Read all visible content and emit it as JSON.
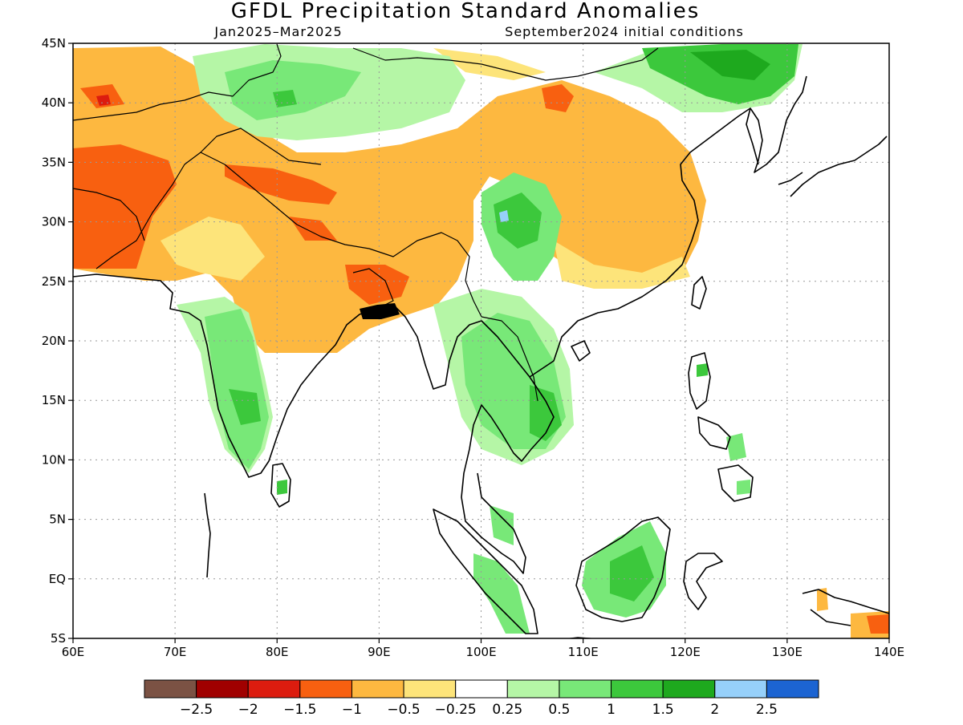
{
  "map": {
    "title": "GFDL Precipitation Standard Anomalies",
    "period": "Jan2025–Mar2025",
    "init": "September2024 initial conditions",
    "lon_range": [
      60,
      140
    ],
    "lat_range": [
      -5,
      45
    ],
    "lon_labels": [
      "60E",
      "70E",
      "80E",
      "90E",
      "100E",
      "110E",
      "120E",
      "130E",
      "140E"
    ],
    "lat_labels": [
      "45N",
      "40N",
      "35N",
      "30N",
      "25N",
      "20N",
      "15N",
      "10N",
      "5N",
      "EQ",
      "5S"
    ]
  },
  "colorbar": {
    "colors": [
      "#7b5244",
      "#a00000",
      "#dc1c0f",
      "#f86010",
      "#fdb840",
      "#fde47a",
      "#ffffff",
      "#b5f6a6",
      "#78e878",
      "#3cc83c",
      "#1ea91e",
      "#96d0fa",
      "#1c64d2"
    ],
    "labels": [
      "−2.5",
      "−2",
      "−1.5",
      "−1",
      "−0.5",
      "−0.25",
      "0.25",
      "0.5",
      "1",
      "1.5",
      "2",
      "2.5"
    ]
  }
}
